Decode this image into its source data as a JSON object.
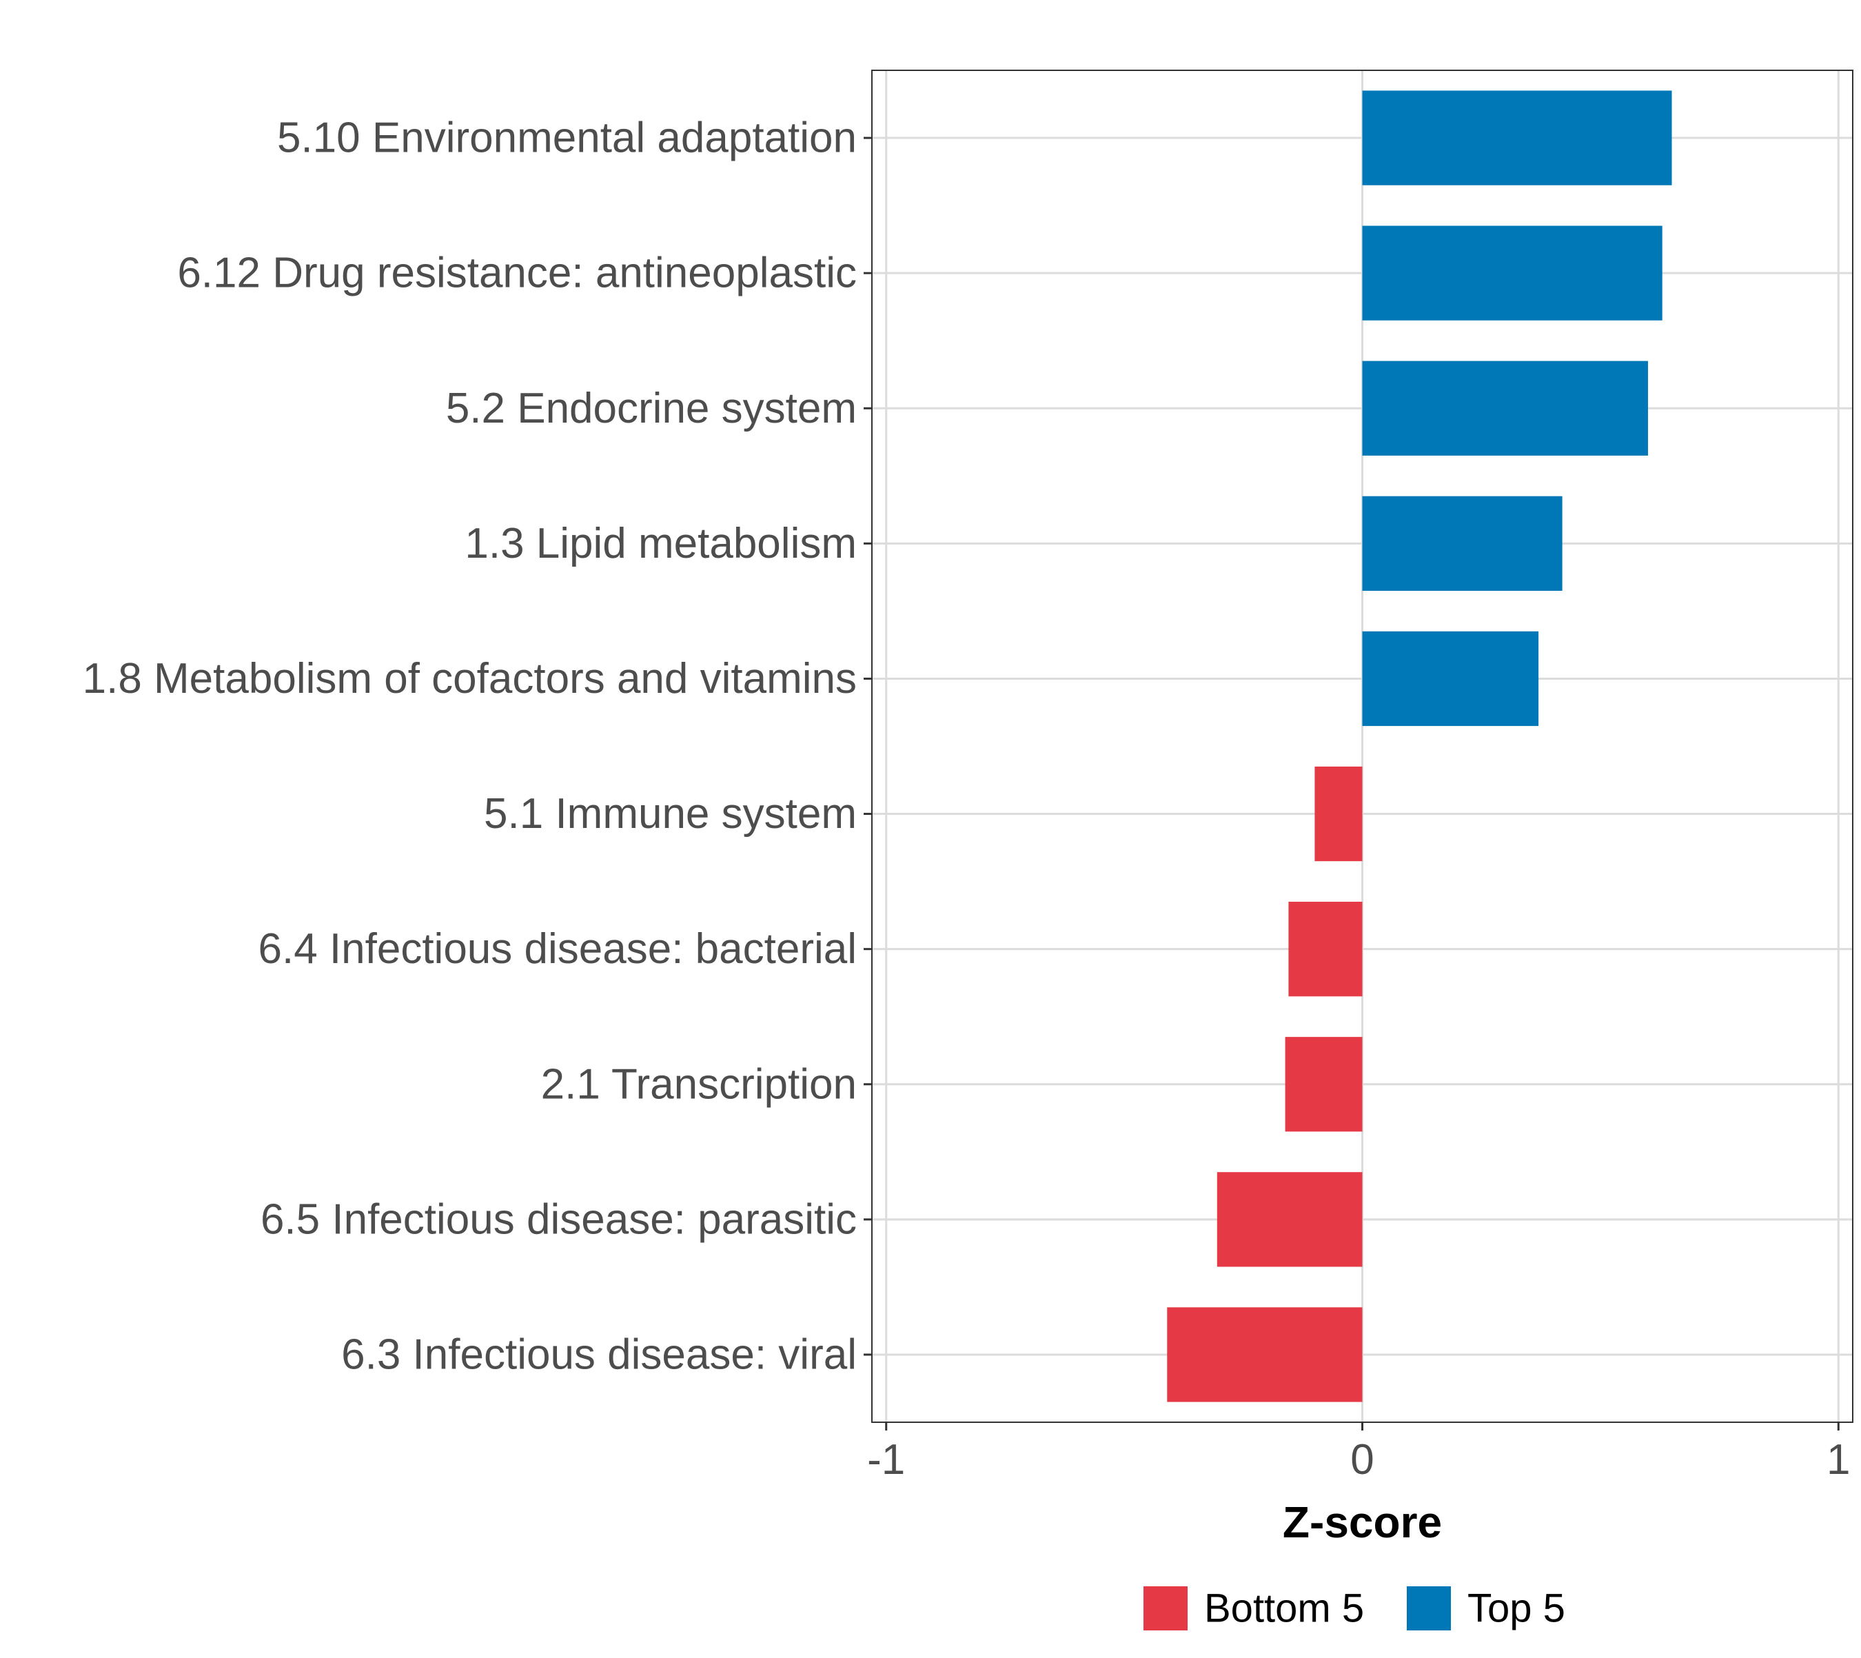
{
  "chart_data": {
    "type": "bar",
    "orientation": "horizontal",
    "title": "",
    "xlabel": "Z-score",
    "ylabel": "",
    "xlim": [
      -1.03,
      1.03
    ],
    "xticks": [
      -1,
      0,
      1
    ],
    "xtick_labels": [
      "-1",
      "0",
      "1"
    ],
    "grid": true,
    "legend_position": "bottom",
    "categories": [
      "5.10 Environmental adaptation",
      "6.12 Drug resistance: antineoplastic",
      "5.2 Endocrine system",
      "1.3 Lipid metabolism",
      "1.8 Metabolism of cofactors and vitamins",
      "5.1 Immune system",
      "6.4 Infectious disease: bacterial",
      "2.1 Transcription",
      "6.5 Infectious disease: parasitic",
      "6.3 Infectious disease: viral"
    ],
    "values": [
      0.65,
      0.63,
      0.6,
      0.42,
      0.37,
      -0.1,
      -0.155,
      -0.162,
      -0.305,
      -0.41
    ],
    "groups": [
      "Top 5",
      "Top 5",
      "Top 5",
      "Top 5",
      "Top 5",
      "Bottom 5",
      "Bottom 5",
      "Bottom 5",
      "Bottom 5",
      "Bottom 5"
    ],
    "legend": [
      {
        "label": "Bottom 5",
        "color": "#E63946"
      },
      {
        "label": "Top 5",
        "color": "#0077B6"
      }
    ]
  }
}
